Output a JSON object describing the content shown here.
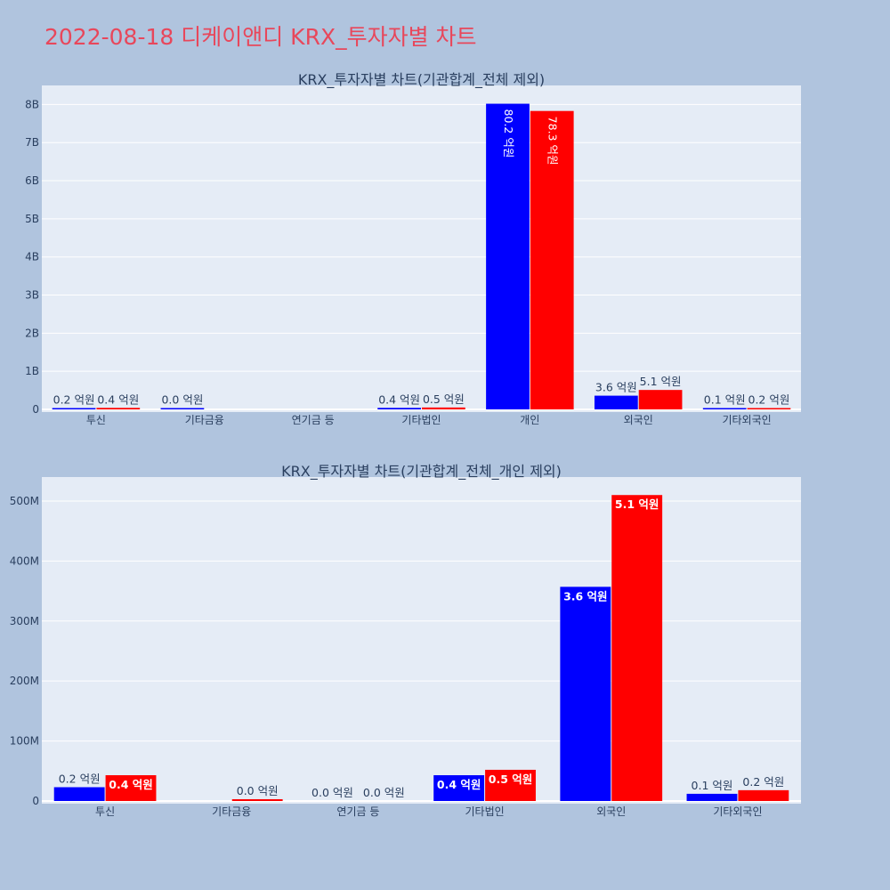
{
  "title": "2022-08-18 디케이앤디 KRX_투자자별 차트",
  "colors": {
    "buy": "#0000ff",
    "sell": "#ff0000",
    "title": "#e8475b",
    "plot_bg": "#e5ecf6",
    "page_bg": "#b0c4de"
  },
  "chart_data": [
    {
      "type": "bar",
      "title": "KRX_투자자별 차트(기관합계_전체 제외)",
      "categories": [
        "투신",
        "기타금융",
        "연기금 등",
        "기타법인",
        "개인",
        "외국인",
        "기타외국인"
      ],
      "yticks": [
        0,
        1000000000,
        2000000000,
        3000000000,
        4000000000,
        5000000000,
        6000000000,
        7000000000,
        8000000000
      ],
      "ytick_labels": [
        "0",
        "1B",
        "2B",
        "3B",
        "4B",
        "5B",
        "6B",
        "7B",
        "8B"
      ],
      "ylim": [
        0,
        8500000000
      ],
      "series": [
        {
          "color": "#0000ff",
          "values": [
            20000000,
            1000000,
            0,
            40000000,
            8020000000,
            360000000,
            10000000
          ],
          "labels": [
            "0.2 억원",
            "0.0 억원",
            "",
            "0.4 억원",
            "80.2 억원",
            "3.6 억원",
            "0.1 억원"
          ]
        },
        {
          "color": "#ff0000",
          "values": [
            40000000,
            0,
            0,
            50000000,
            7830000000,
            510000000,
            20000000
          ],
          "labels": [
            "0.4 억원",
            "",
            "",
            "0.5 억원",
            "78.3 억원",
            "5.1 억원",
            "0.2 억원"
          ]
        }
      ]
    },
    {
      "type": "bar",
      "title": "KRX_투자자별 차트(기관합계_전체_개인 제외)",
      "categories": [
        "투신",
        "기타금융",
        "연기금 등",
        "기타법인",
        "외국인",
        "기타외국인"
      ],
      "yticks": [
        0,
        100000000,
        200000000,
        300000000,
        400000000,
        500000000
      ],
      "ytick_labels": [
        "0",
        "100M",
        "200M",
        "300M",
        "400M",
        "500M"
      ],
      "ylim": [
        0,
        540000000
      ],
      "series": [
        {
          "color": "#0000ff",
          "values": [
            23000000,
            0,
            0,
            43000000,
            357000000,
            12000000
          ],
          "labels": [
            "0.2 억원",
            "",
            "0.0 억원",
            "0.4 억원",
            "3.6 억원",
            "0.1 억원"
          ]
        },
        {
          "color": "#ff0000",
          "values": [
            43000000,
            3000000,
            0,
            52000000,
            510000000,
            18000000
          ],
          "labels": [
            "0.4 억원",
            "0.0 억원",
            "0.0 억원",
            "0.5 억원",
            "5.1 억원",
            "0.2 억원"
          ]
        }
      ]
    }
  ]
}
